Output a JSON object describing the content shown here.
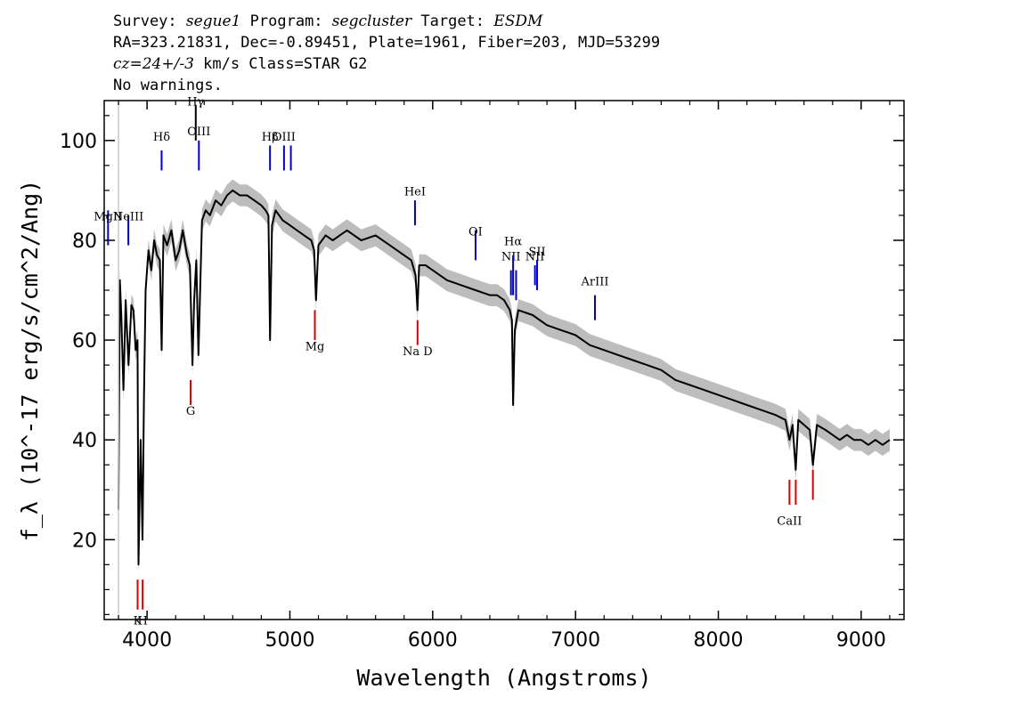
{
  "header": {
    "survey_label": "Survey:",
    "survey": "segue1",
    "program_label": "Program:",
    "program": "segcluster",
    "target_label": "Target:",
    "target": "ESDM",
    "line2": "RA=323.21831, Dec=-0.89451, Plate=1961, Fiber=203, MJD=53299",
    "cz": "cz=24+/-3",
    "line3_rest": " km/s Class=STAR G2",
    "line4": "No warnings."
  },
  "colors": {
    "spectrum": "#000000",
    "error_band": "#bdbdbd",
    "emission_marker": "#0000cc",
    "absorption_marker": "#dd0000",
    "sky_marker": "#000000"
  },
  "chart_data": {
    "type": "line",
    "title": "",
    "xlabel": "Wavelength (Angstroms)",
    "ylabel": "f_λ (10^-17 erg/s/cm^2/Ang)",
    "xlim": [
      3700,
      9300
    ],
    "ylim": [
      4,
      108
    ],
    "xticks": [
      4000,
      5000,
      6000,
      7000,
      8000,
      9000
    ],
    "yticks": [
      20,
      40,
      60,
      80,
      100
    ],
    "grid": false,
    "series": [
      {
        "name": "",
        "x": [
          3800,
          3810,
          3820,
          3835,
          3850,
          3870,
          3890,
          3905,
          3920,
          3933,
          3940,
          3955,
          3968,
          3978,
          3990,
          4010,
          4030,
          4050,
          4070,
          4090,
          4102,
          4115,
          4140,
          4170,
          4200,
          4226,
          4250,
          4280,
          4300,
          4318,
          4330,
          4345,
          4360,
          4385,
          4410,
          4440,
          4480,
          4520,
          4560,
          4600,
          4650,
          4700,
          4750,
          4800,
          4830,
          4850,
          4861,
          4875,
          4900,
          4950,
          5000,
          5050,
          5100,
          5150,
          5170,
          5183,
          5200,
          5250,
          5300,
          5400,
          5500,
          5600,
          5700,
          5800,
          5850,
          5880,
          5893,
          5905,
          5950,
          6000,
          6100,
          6200,
          6300,
          6400,
          6450,
          6500,
          6540,
          6555,
          6563,
          6575,
          6600,
          6700,
          6800,
          6900,
          7000,
          7100,
          7200,
          7300,
          7400,
          7500,
          7600,
          7700,
          7800,
          7900,
          8000,
          8100,
          8200,
          8300,
          8400,
          8470,
          8498,
          8520,
          8542,
          8560,
          8600,
          8640,
          8662,
          8690,
          8750,
          8800,
          8850,
          8900,
          8950,
          9000,
          9050,
          9100,
          9150,
          9200
        ],
        "y": [
          26,
          72,
          65,
          50,
          68,
          55,
          67,
          66,
          58,
          60,
          15,
          40,
          20,
          48,
          70,
          78,
          74,
          80,
          77,
          76,
          58,
          81,
          79,
          82,
          76,
          78,
          82,
          77,
          75,
          55,
          68,
          76,
          57,
          84,
          86,
          85,
          88,
          87,
          89,
          90,
          89,
          89,
          88,
          87,
          86,
          85,
          60,
          83,
          86,
          84,
          83,
          82,
          81,
          80,
          78,
          68,
          79,
          81,
          80,
          82,
          80,
          81,
          79,
          77,
          76,
          73,
          66,
          75,
          75,
          74,
          72,
          71,
          70,
          69,
          69,
          68,
          66,
          64,
          47,
          62,
          66,
          65,
          63,
          62,
          61,
          59,
          58,
          57,
          56,
          55,
          54,
          52,
          51,
          50,
          49,
          48,
          47,
          46,
          45,
          44,
          40,
          43,
          34,
          44,
          43,
          42,
          35,
          43,
          42,
          41,
          40,
          41,
          40,
          40,
          39,
          40,
          39,
          40
        ]
      }
    ],
    "line_markers": [
      {
        "label": "MgII",
        "wavelength": 3727,
        "kind": "emission",
        "label_y": 84,
        "y1": 79,
        "y2": 86
      },
      {
        "label": "NeIII",
        "wavelength": 3869,
        "kind": "emission",
        "label_y": 84,
        "y1": 79,
        "y2": 85
      },
      {
        "label": "Hδ",
        "wavelength": 4102,
        "kind": "emission",
        "label_y": 100,
        "y1": 94,
        "y2": 98
      },
      {
        "label": "Hγ",
        "wavelength": 4341,
        "kind": "sky",
        "label_y": 107,
        "y1": 100,
        "y2": 107
      },
      {
        "label": "OIII",
        "wavelength": 4363,
        "kind": "emission",
        "label_y": 101,
        "y1": 94,
        "y2": 100
      },
      {
        "label": "Hβ",
        "wavelength": 4861,
        "kind": "emission",
        "label_y": 100,
        "y1": 94,
        "y2": 99
      },
      {
        "label": "OIII",
        "wavelength": 4959,
        "kind": "emission",
        "label_y": 100,
        "y1": 94,
        "y2": 99
      },
      {
        "label": "",
        "wavelength": 5007,
        "kind": "emission",
        "label_y": 100,
        "y1": 94,
        "y2": 99
      },
      {
        "label": "HeI",
        "wavelength": 5876,
        "kind": "emission",
        "label_y": 89,
        "y1": 83,
        "y2": 88
      },
      {
        "label": "OI",
        "wavelength": 6300,
        "kind": "emission",
        "label_y": 81,
        "y1": 76,
        "y2": 82
      },
      {
        "label": "NII",
        "wavelength": 6548,
        "kind": "emission",
        "label_y": 76,
        "y1": 69,
        "y2": 74
      },
      {
        "label": "Hα",
        "wavelength": 6563,
        "kind": "emission",
        "label_y": 79,
        "y1": 69,
        "y2": 77
      },
      {
        "label": "",
        "wavelength": 6584,
        "kind": "emission",
        "label_y": 76,
        "y1": 68,
        "y2": 74
      },
      {
        "label": "NII",
        "wavelength": 6716,
        "kind": "emission",
        "label_y": 76,
        "y1": 71,
        "y2": 75
      },
      {
        "label": "SII",
        "wavelength": 6731,
        "kind": "emission",
        "label_y": 77,
        "y1": 70,
        "y2": 76
      },
      {
        "label": "ArIII",
        "wavelength": 7136,
        "kind": "emission",
        "label_y": 71,
        "y1": 64,
        "y2": 69
      },
      {
        "label": "K",
        "wavelength": 3934,
        "kind": "absorption",
        "label_y": 3,
        "y1": 6,
        "y2": 12
      },
      {
        "label": "H",
        "wavelength": 3969,
        "kind": "absorption",
        "label_y": 3,
        "y1": 6,
        "y2": 12
      },
      {
        "label": "G",
        "wavelength": 4305,
        "kind": "absorption",
        "label_y": 45,
        "y1": 47,
        "y2": 52
      },
      {
        "label": "Mg",
        "wavelength": 5175,
        "kind": "absorption",
        "label_y": 58,
        "y1": 60,
        "y2": 66
      },
      {
        "label": "Na D",
        "wavelength": 5894,
        "kind": "absorption",
        "label_y": 57,
        "y1": 59,
        "y2": 64
      },
      {
        "label": "CaII",
        "wavelength": 8498,
        "kind": "absorption",
        "label_y": 23,
        "y1": 27,
        "y2": 32
      },
      {
        "label": "",
        "wavelength": 8542,
        "kind": "absorption",
        "label_y": 23,
        "y1": 27,
        "y2": 32
      },
      {
        "label": "",
        "wavelength": 8662,
        "kind": "absorption",
        "label_y": 23,
        "y1": 28,
        "y2": 34
      }
    ]
  }
}
